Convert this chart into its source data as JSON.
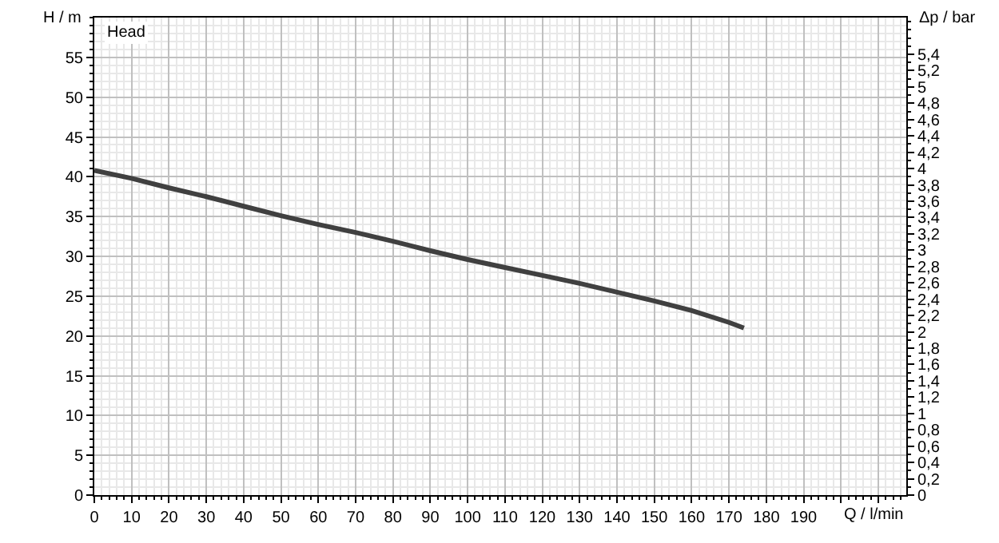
{
  "chart_data": {
    "type": "line",
    "xlabel": "Q / l/min",
    "ylabel": "H / m",
    "y2label": "Δp / bar",
    "annotations": [
      "Head"
    ],
    "x": [
      0,
      10,
      20,
      30,
      40,
      50,
      60,
      70,
      80,
      90,
      100,
      110,
      120,
      130,
      140,
      150,
      160,
      170,
      174
    ],
    "series": [
      {
        "color": "#404040",
        "values": [
          40.8,
          39.8,
          38.6,
          37.5,
          36.3,
          35.1,
          34.0,
          33.0,
          31.9,
          30.7,
          29.6,
          28.6,
          27.6,
          26.6,
          25.5,
          24.4,
          23.2,
          21.7,
          21.0
        ]
      }
    ],
    "xlim": [
      0,
      217.5
    ],
    "ylim": [
      0,
      60
    ],
    "y2lim": [
      0,
      5.85
    ],
    "xticks": [
      0,
      10,
      20,
      30,
      40,
      50,
      60,
      70,
      80,
      90,
      100,
      110,
      120,
      130,
      140,
      150,
      160,
      170,
      180,
      190,
      {
        "value": 200,
        "label": null
      },
      {
        "value": 210,
        "label": null
      }
    ],
    "yticks": [
      0,
      5,
      10,
      15,
      20,
      25,
      30,
      35,
      40,
      45,
      50,
      55
    ],
    "y2ticks": [
      0,
      {
        "value": 0.2,
        "label": "0,2"
      },
      {
        "value": 0.4,
        "label": "0,4"
      },
      {
        "value": 0.6,
        "label": "0,6"
      },
      {
        "value": 0.8,
        "label": "0,8"
      },
      1,
      {
        "value": 1.2,
        "label": "1,2"
      },
      {
        "value": 1.4,
        "label": "1,4"
      },
      {
        "value": 1.6,
        "label": "1,6"
      },
      {
        "value": 1.8,
        "label": "1,8"
      },
      2,
      {
        "value": 2.2,
        "label": "2,2"
      },
      {
        "value": 2.4,
        "label": "2,4"
      },
      {
        "value": 2.6,
        "label": "2,6"
      },
      {
        "value": 2.8,
        "label": "2,8"
      },
      3,
      {
        "value": 3.2,
        "label": "3,2"
      },
      {
        "value": 3.4,
        "label": "3,4"
      },
      {
        "value": 3.6,
        "label": "3,6"
      },
      {
        "value": 3.8,
        "label": "3,8"
      },
      4,
      {
        "value": 4.2,
        "label": "4,2"
      },
      {
        "value": 4.4,
        "label": "4,4"
      },
      {
        "value": 4.6,
        "label": "4,6"
      },
      {
        "value": 4.8,
        "label": "4,8"
      },
      5,
      {
        "value": 5.2,
        "label": "5,2"
      },
      {
        "value": 5.4,
        "label": "5,4"
      }
    ],
    "grid": true,
    "marker": "none",
    "line_style": "solid"
  }
}
